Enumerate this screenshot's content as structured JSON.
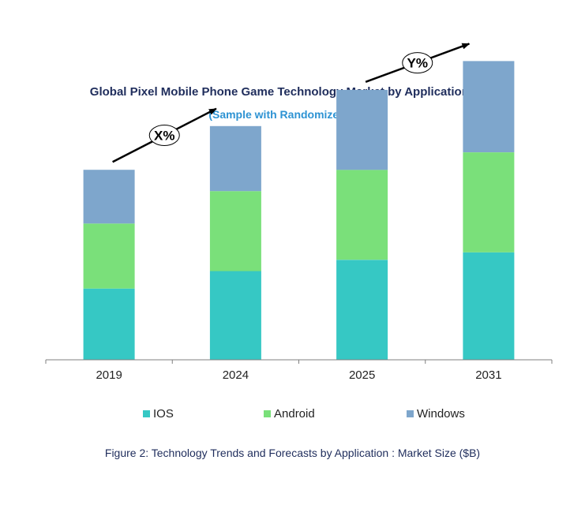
{
  "chart_data": {
    "type": "bar",
    "stacked": true,
    "title": "Global Pixel Mobile Phone Game Technology Market by Application ($B)",
    "subtitle": "(Sample with Randomized Data)",
    "categories": [
      "2019",
      "2024",
      "2025",
      "2031"
    ],
    "series": [
      {
        "name": "IOS",
        "color": "#36c8c4",
        "values": [
          57,
          71,
          80,
          86
        ]
      },
      {
        "name": "Android",
        "color": "#7ae07a",
        "values": [
          52,
          64,
          72,
          80
        ]
      },
      {
        "name": "Windows",
        "color": "#7ea6cc",
        "values": [
          43,
          52,
          64,
          73
        ]
      }
    ],
    "ylim": [
      0,
      250
    ],
    "annotations": [
      {
        "label": "X%",
        "from": "2019",
        "to": "2024"
      },
      {
        "label": "Y%",
        "from": "2025",
        "to": "2031"
      }
    ],
    "legend_position": "bottom"
  },
  "figure_caption": "Figure 2: Technology  Trends  and Forecasts by Application : Market Size ($B)"
}
